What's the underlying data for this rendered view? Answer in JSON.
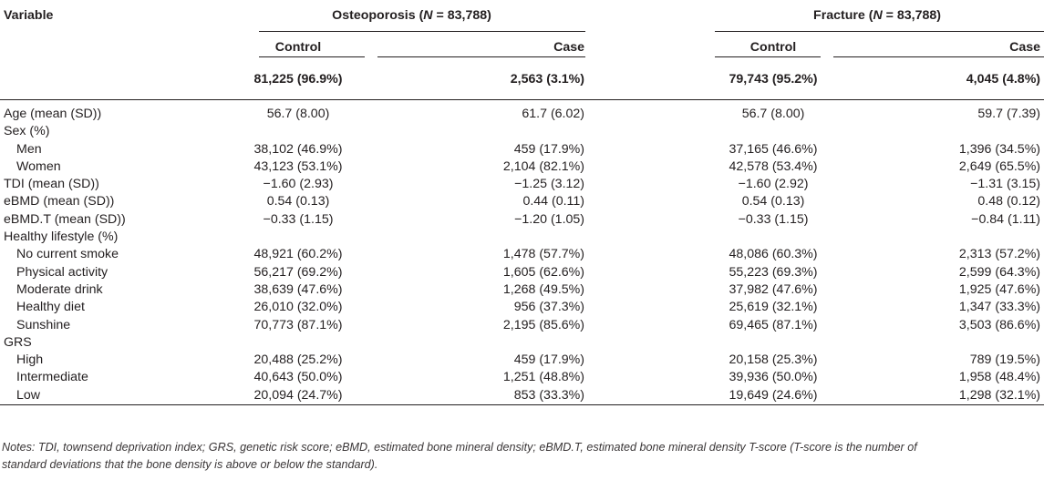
{
  "table": {
    "variable_header": "Variable",
    "groups": [
      {
        "title_prefix": "Osteoporosis (",
        "n_label": "N",
        "title_suffix": " = 83,788)"
      },
      {
        "title_prefix": "Fracture (",
        "n_label": "N",
        "title_suffix": " = 83,788)"
      }
    ],
    "subheaders": [
      "Control",
      "Case",
      "Control",
      "Case"
    ],
    "totals": [
      "81,225 (96.9%)",
      "2,563 (3.1%)",
      "79,743 (95.2%)",
      "4,045 (4.8%)"
    ],
    "rows": [
      {
        "label": "Age (mean (SD))",
        "values": [
          "56.7 (8.00)",
          "61.7 (6.02)",
          "56.7 (8.00)",
          "59.7 (7.39)"
        ]
      },
      {
        "label": "Sex (%)",
        "values": [
          "",
          "",
          "",
          ""
        ]
      },
      {
        "label": "Men",
        "values": [
          "38,102 (46.9%)",
          "459 (17.9%)",
          "37,165 (46.6%)",
          "1,396 (34.5%)"
        ]
      },
      {
        "label": "Women",
        "values": [
          "43,123 (53.1%)",
          "2,104 (82.1%)",
          "42,578 (53.4%)",
          "2,649 (65.5%)"
        ]
      },
      {
        "label": "TDI (mean (SD))",
        "values": [
          "−1.60 (2.93)",
          "−1.25 (3.12)",
          "−1.60 (2.92)",
          "−1.31 (3.15)"
        ]
      },
      {
        "label": "eBMD (mean (SD))",
        "values": [
          "0.54 (0.13)",
          "0.44 (0.11)",
          "0.54 (0.13)",
          "0.48 (0.12)"
        ]
      },
      {
        "label": "eBMD.T (mean (SD))",
        "values": [
          "−0.33 (1.15)",
          "−1.20 (1.05)",
          "−0.33 (1.15)",
          "−0.84 (1.11)"
        ]
      },
      {
        "label": "Healthy lifestyle (%)",
        "values": [
          "",
          "",
          "",
          ""
        ]
      },
      {
        "label": "No current smoke",
        "values": [
          "48,921 (60.2%)",
          "1,478 (57.7%)",
          "48,086 (60.3%)",
          "2,313 (57.2%)"
        ]
      },
      {
        "label": "Physical activity",
        "values": [
          "56,217 (69.2%)",
          "1,605 (62.6%)",
          "55,223 (69.3%)",
          "2,599 (64.3%)"
        ]
      },
      {
        "label": "Moderate drink",
        "values": [
          "38,639 (47.6%)",
          "1,268 (49.5%)",
          "37,982 (47.6%)",
          "1,925 (47.6%)"
        ]
      },
      {
        "label": "Healthy diet",
        "values": [
          "26,010 (32.0%)",
          "956 (37.3%)",
          "25,619 (32.1%)",
          "1,347 (33.3%)"
        ]
      },
      {
        "label": "Sunshine",
        "values": [
          "70,773 (87.1%)",
          "2,195 (85.6%)",
          "69,465 (87.1%)",
          "3,503 (86.6%)"
        ]
      },
      {
        "label": "GRS",
        "values": [
          "",
          "",
          "",
          ""
        ]
      },
      {
        "label": "High",
        "values": [
          "20,488 (25.2%)",
          "459 (17.9%)",
          "20,158 (25.3%)",
          "789 (19.5%)"
        ]
      },
      {
        "label": "Intermediate",
        "values": [
          "40,643 (50.0%)",
          "1,251 (48.8%)",
          "39,936 (50.0%)",
          "1,958 (48.4%)"
        ]
      },
      {
        "label": "Low",
        "values": [
          "20,094 (24.7%)",
          "853 (33.3%)",
          "19,649 (24.6%)",
          "1,298 (32.1%)"
        ]
      }
    ]
  },
  "notes": {
    "line1": "Notes: TDI, townsend deprivation index; GRS, genetic risk score; eBMD, estimated bone mineral density; eBMD.T, estimated bone mineral density T-score (T-score is the number of",
    "line2": "standard deviations that the bone density is above or below the standard)."
  }
}
